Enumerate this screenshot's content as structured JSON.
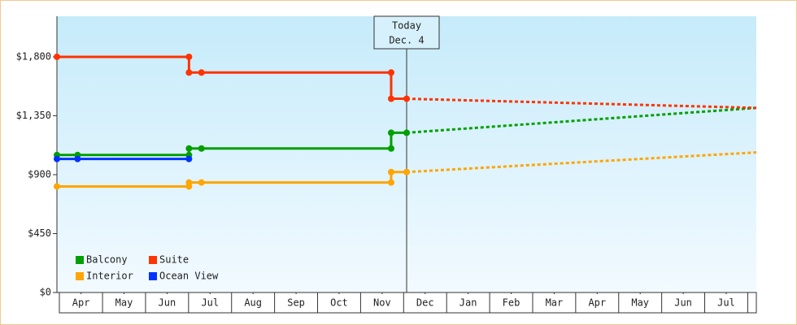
{
  "chart_data": {
    "type": "line",
    "xlim": [
      -0.06,
      16.2
    ],
    "xticks": [
      {
        "value": 0.5,
        "label": "Apr"
      },
      {
        "value": 1.5,
        "label": "May"
      },
      {
        "value": 2.5,
        "label": "Jun"
      },
      {
        "value": 3.5,
        "label": "Jul"
      },
      {
        "value": 4.5,
        "label": "Aug"
      },
      {
        "value": 5.5,
        "label": "Sep"
      },
      {
        "value": 6.5,
        "label": "Oct"
      },
      {
        "value": 7.5,
        "label": "Nov"
      },
      {
        "value": 8.5,
        "label": "Dec"
      },
      {
        "value": 9.5,
        "label": "Jan"
      },
      {
        "value": 10.5,
        "label": "Feb"
      },
      {
        "value": 11.5,
        "label": "Mar"
      },
      {
        "value": 12.5,
        "label": "Apr"
      },
      {
        "value": 13.5,
        "label": "May"
      },
      {
        "value": 14.5,
        "label": "Jun"
      },
      {
        "value": 15.5,
        "label": "Jul"
      }
    ],
    "ylim": [
      0,
      2110
    ],
    "yticks": [
      {
        "value": 0,
        "label": "$0"
      },
      {
        "value": 450,
        "label": "$450"
      },
      {
        "value": 900,
        "label": "$900"
      },
      {
        "value": 1350,
        "label": "$1,350"
      },
      {
        "value": 1800,
        "label": "$1,800"
      }
    ],
    "today": {
      "x": 8.07,
      "label": "Today",
      "date": "Dec. 4"
    },
    "legend": "bottom-left",
    "series": [
      {
        "name": "Balcony",
        "color": "#00a000",
        "x": [
          -0.06,
          0.42,
          3.01,
          3.01,
          3.3,
          7.71,
          7.71,
          8.07
        ],
        "values": [
          1050,
          1050,
          1050,
          1100,
          1100,
          1100,
          1220,
          1220
        ],
        "forecast": {
          "x": [
            8.07,
            16.2
          ],
          "values": [
            1220,
            1410
          ]
        }
      },
      {
        "name": "Suite",
        "color": "#ff3300",
        "x": [
          -0.06,
          3.01,
          3.01,
          3.3,
          7.71,
          7.71,
          8.07
        ],
        "values": [
          1800,
          1800,
          1680,
          1680,
          1680,
          1480,
          1480
        ],
        "forecast": {
          "x": [
            8.07,
            16.2
          ],
          "values": [
            1480,
            1410
          ]
        }
      },
      {
        "name": "Interior",
        "color": "#ffa500",
        "x": [
          -0.06,
          3.01,
          3.01,
          3.3,
          7.71,
          7.71,
          8.07
        ],
        "values": [
          810,
          810,
          840,
          840,
          840,
          920,
          920
        ],
        "forecast": {
          "x": [
            8.07,
            16.2
          ],
          "values": [
            920,
            1070
          ]
        }
      },
      {
        "name": "Ocean View",
        "color": "#0033ff",
        "x": [
          -0.06,
          0.42,
          3.01
        ],
        "values": [
          1020,
          1020,
          1020
        ]
      }
    ]
  }
}
